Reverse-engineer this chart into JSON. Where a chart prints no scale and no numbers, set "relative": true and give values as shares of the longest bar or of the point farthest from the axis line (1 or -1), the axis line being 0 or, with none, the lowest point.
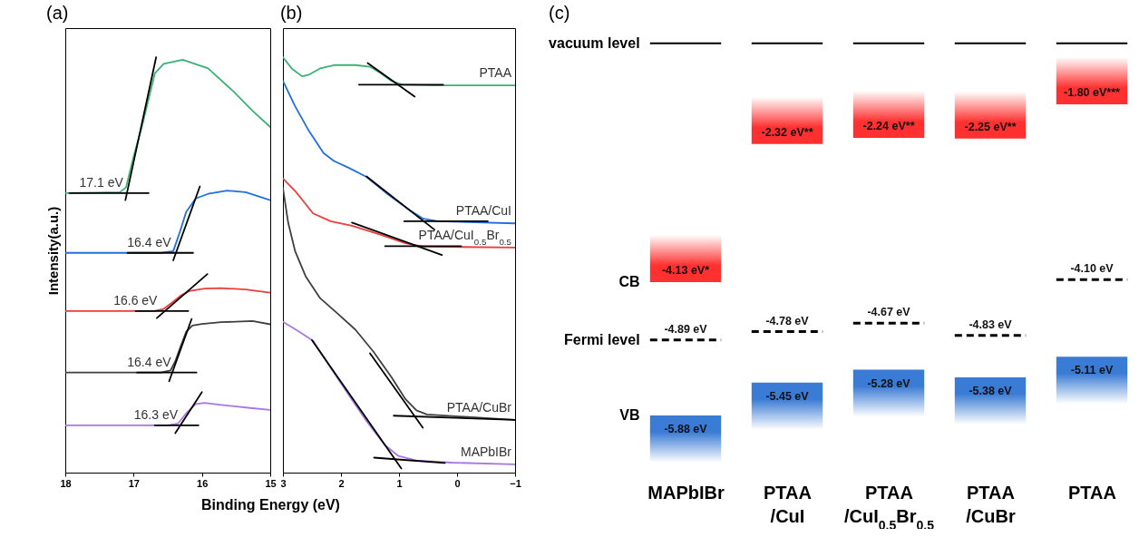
{
  "chart_data": [
    {
      "type": "line",
      "title": "(a)",
      "relative": true,
      "xlabel": "Binding Energy (eV)",
      "ylabel": "Intensity(a.u.)",
      "xlim": [
        18,
        15
      ],
      "xticks": [
        18,
        17,
        16,
        15
      ],
      "annotations": [
        {
          "text": "17.1 eV",
          "x": 17.1,
          "y": 0.673
        },
        {
          "text": "16.4 eV",
          "x": 16.4,
          "y": 0.529
        },
        {
          "text": "16.6 eV",
          "x": 16.6,
          "y": 0.389
        },
        {
          "text": "16.4 eV",
          "x": 16.4,
          "y": 0.241
        },
        {
          "text": "16.3 eV",
          "x": 16.3,
          "y": 0.114
        }
      ],
      "series": [
        {
          "color": "#3bb273",
          "x": [
            18,
            17.2,
            17.11,
            17.0,
            16.88,
            16.69,
            16.56,
            16.28,
            15.91,
            15.54,
            15.26,
            15.0
          ],
          "values": [
            0.673,
            0.675,
            0.687,
            0.761,
            0.832,
            0.961,
            0.984,
            0.994,
            0.973,
            0.918,
            0.871,
            0.832
          ]
        },
        {
          "color": "#1f6fe0",
          "x": [
            18,
            16.6,
            16.42,
            16.32,
            16.23,
            16.09,
            15.91,
            15.63,
            15.36,
            15.0
          ],
          "values": [
            0.529,
            0.529,
            0.533,
            0.581,
            0.628,
            0.66,
            0.671,
            0.679,
            0.675,
            0.656
          ]
        },
        {
          "color": "#ee3b3b",
          "x": [
            18,
            16.7,
            16.56,
            16.44,
            16.32,
            16.19,
            15.96,
            15.72,
            15.36,
            15.0
          ],
          "values": [
            0.389,
            0.389,
            0.394,
            0.409,
            0.425,
            0.437,
            0.443,
            0.444,
            0.441,
            0.433
          ]
        },
        {
          "color": "#404040",
          "x": [
            18,
            16.6,
            16.46,
            16.39,
            16.32,
            16.23,
            16.14,
            16.0,
            15.72,
            15.26,
            15.0
          ],
          "values": [
            0.241,
            0.241,
            0.246,
            0.268,
            0.3,
            0.339,
            0.354,
            0.358,
            0.362,
            0.365,
            0.357
          ]
        },
        {
          "color": "#a878e0",
          "x": [
            18,
            16.5,
            16.35,
            16.23,
            16.09,
            15.96,
            15.72,
            15.26,
            15.0
          ],
          "values": [
            0.114,
            0.114,
            0.118,
            0.143,
            0.165,
            0.168,
            0.163,
            0.155,
            0.151
          ]
        },
        {
          "color": "#000000",
          "x": [
            17.12,
            16.67
          ],
          "values": [
            0.656,
            1.0
          ]
        },
        {
          "color": "#000000",
          "x": [
            17.94,
            16.78
          ],
          "values": [
            0.673,
            0.673
          ]
        },
        {
          "color": "#000000",
          "x": [
            16.42,
            16.03
          ],
          "values": [
            0.511,
            0.689
          ]
        },
        {
          "color": "#000000",
          "x": [
            17.09,
            16.13
          ],
          "values": [
            0.529,
            0.529
          ]
        },
        {
          "color": "#000000",
          "x": [
            16.66,
            15.92
          ],
          "values": [
            0.372,
            0.478
          ]
        },
        {
          "color": "#000000",
          "x": [
            16.97,
            16.2
          ],
          "values": [
            0.389,
            0.389
          ]
        },
        {
          "color": "#000000",
          "x": [
            16.48,
            16.15
          ],
          "values": [
            0.22,
            0.37
          ]
        },
        {
          "color": "#000000",
          "x": [
            16.95,
            16.08
          ],
          "values": [
            0.241,
            0.241
          ]
        },
        {
          "color": "#000000",
          "x": [
            16.39,
            16.0
          ],
          "values": [
            0.095,
            0.194
          ]
        },
        {
          "color": "#000000",
          "x": [
            16.69,
            16.05
          ],
          "values": [
            0.114,
            0.114
          ]
        }
      ]
    },
    {
      "type": "line",
      "title": "(b)",
      "relative": true,
      "xlim": [
        3,
        -1
      ],
      "xticks": [
        3,
        2,
        1,
        0,
        -1
      ],
      "series": [
        {
          "name": "PTAA",
          "color": "#3bb273",
          "x": [
            3,
            2.85,
            2.67,
            2.55,
            2.36,
            2.12,
            1.75,
            1.5,
            1.32,
            1.13,
            0.95,
            0.39,
            -1
          ],
          "values": [
            1.0,
            0.973,
            0.954,
            0.958,
            0.973,
            0.981,
            0.981,
            0.977,
            0.962,
            0.943,
            0.934,
            0.932,
            0.932
          ]
        },
        {
          "name": "PTAA/CuI",
          "color": "#1f6fe0",
          "x": [
            3,
            2.79,
            2.55,
            2.3,
            2.12,
            1.87,
            1.56,
            1.19,
            0.82,
            0.58,
            0.33,
            -1
          ],
          "values": [
            0.943,
            0.882,
            0.822,
            0.769,
            0.75,
            0.734,
            0.712,
            0.67,
            0.632,
            0.611,
            0.605,
            0.6
          ]
        },
        {
          "name": "PTAA/CuI$_{0.5}$Br$_{0.5}$",
          "color": "#ee3b3b",
          "x": [
            3,
            2.79,
            2.48,
            2.18,
            1.81,
            1.32,
            0.89,
            0.58,
            -1
          ],
          "values": [
            0.708,
            0.678,
            0.624,
            0.605,
            0.594,
            0.573,
            0.552,
            0.544,
            0.542
          ]
        },
        {
          "name": "PTAA/CuBr",
          "color": "#404040",
          "x": [
            3,
            2.91,
            2.79,
            2.61,
            2.36,
            2.05,
            1.75,
            1.44,
            1.13,
            0.89,
            0.7,
            0.52,
            -1
          ],
          "values": [
            0.685,
            0.602,
            0.533,
            0.473,
            0.42,
            0.382,
            0.344,
            0.291,
            0.23,
            0.177,
            0.15,
            0.14,
            0.127
          ]
        },
        {
          "name": "MAPbIBr",
          "color": "#a878e0",
          "x": [
            3,
            2.73,
            2.48,
            2.18,
            1.87,
            1.56,
            1.25,
            1.01,
            0.7,
            0.09,
            -1
          ],
          "values": [
            0.363,
            0.34,
            0.317,
            0.253,
            0.188,
            0.124,
            0.067,
            0.04,
            0.029,
            0.024,
            0.02
          ]
        },
        {
          "color": "#000000",
          "x": [
            1.54,
            0.73
          ],
          "values": [
            0.986,
            0.905
          ]
        },
        {
          "color": "#000000",
          "x": [
            1.69,
            0.24
          ],
          "values": [
            0.934,
            0.934
          ]
        },
        {
          "color": "#000000",
          "x": [
            1.56,
            0.39
          ],
          "values": [
            0.713,
            0.585
          ]
        },
        {
          "color": "#000000",
          "x": [
            0.91,
            -0.53
          ],
          "values": [
            0.605,
            0.605
          ]
        },
        {
          "color": "#000000",
          "x": [
            1.81,
            0.26
          ],
          "values": [
            0.602,
            0.524
          ]
        },
        {
          "color": "#000000",
          "x": [
            1.24,
            -0.07
          ],
          "values": [
            0.545,
            0.545
          ]
        },
        {
          "color": "#000000",
          "x": [
            1.5,
            0.59
          ],
          "values": [
            0.287,
            0.108
          ]
        },
        {
          "color": "#000000",
          "x": [
            1.09,
            -1
          ],
          "values": [
            0.137,
            0.127
          ]
        },
        {
          "color": "#000000",
          "x": [
            2.5,
            0.96
          ],
          "values": [
            0.319,
            0.01
          ]
        },
        {
          "color": "#000000",
          "x": [
            1.43,
            0.21
          ],
          "values": [
            0.036,
            0.023
          ]
        }
      ]
    },
    {
      "type": "other",
      "title": "(c)",
      "categories": [
        "MAPbIBr",
        "PTAA/CuI",
        "PTAA/CuI$_{0.5}$Br$_{0.5}$",
        "PTAA/CuBr",
        "PTAA"
      ],
      "annotations": [
        "vacuum level"
      ],
      "series": [
        {
          "name": "CB",
          "type": "bar",
          "color": "#ff3030",
          "values": [
            -4.13,
            -2.32,
            -2.24,
            -2.25,
            -1.8
          ],
          "value_labels": [
            "-4.13 eV*",
            "-2.32 eV**",
            "-2.24 eV**",
            "-2.25 eV**",
            "-1.80 eV***"
          ]
        },
        {
          "name": "Fermi level",
          "type": "line",
          "line_style": "dashed",
          "color": "#000000",
          "values": [
            -4.89,
            -4.78,
            -4.67,
            -4.83,
            -4.1
          ],
          "value_labels": [
            "-4.89 eV",
            "-4.78 eV",
            "-4.67 eV",
            "-4.83 eV",
            "-4.10 eV"
          ]
        },
        {
          "name": "VB",
          "type": "bar",
          "color": "#3a7bd5",
          "values": [
            -5.88,
            -5.45,
            -5.28,
            -5.38,
            -5.11
          ],
          "value_labels": [
            "-5.88 eV",
            "-5.45 eV",
            "-5.28 eV",
            "-5.38 eV",
            "-5.11 eV"
          ]
        }
      ]
    }
  ]
}
